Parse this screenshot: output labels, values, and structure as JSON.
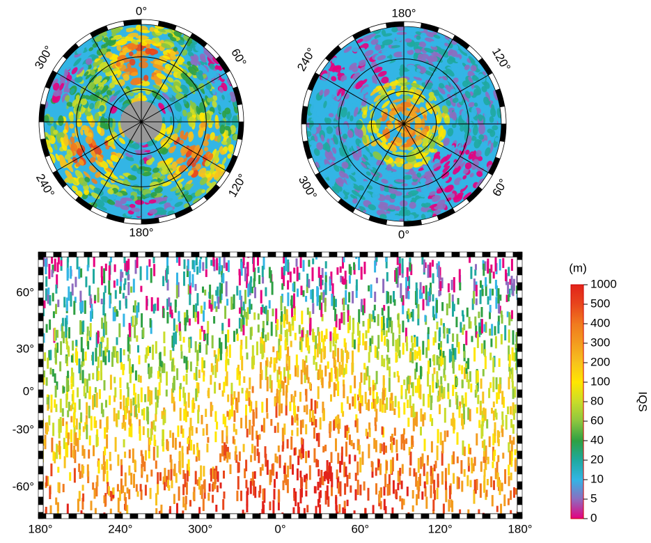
{
  "figure": {
    "polar_maps": [
      {
        "labels": [
          "0°",
          "60°",
          "120°",
          "180°",
          "240°",
          "300°"
        ]
      },
      {
        "labels": [
          "180°",
          "120°",
          "60°",
          "0°",
          "300°",
          "240°"
        ]
      }
    ],
    "rect_map": {
      "lon_labels": [
        "180°",
        "240°",
        "300°",
        "0°",
        "60°",
        "120°",
        "180°"
      ],
      "lat_labels": [
        "60°",
        "30°",
        "0°",
        "-30°",
        "-60°"
      ]
    },
    "colorbar": {
      "unit": "(m)",
      "label": "IQS",
      "ticks": [
        "1000",
        "500",
        "400",
        "300",
        "200",
        "100",
        "80",
        "60",
        "40",
        "20",
        "10",
        "5",
        "0"
      ],
      "colors": [
        "#e2231a",
        "#e8461c",
        "#f07a1e",
        "#f39c1f",
        "#f7c21d",
        "#ffe600",
        "#c8dc2a",
        "#8cc63f",
        "#2ea043",
        "#1fa9a0",
        "#33b5e5",
        "#8e6bbf",
        "#e6007e"
      ]
    }
  }
}
